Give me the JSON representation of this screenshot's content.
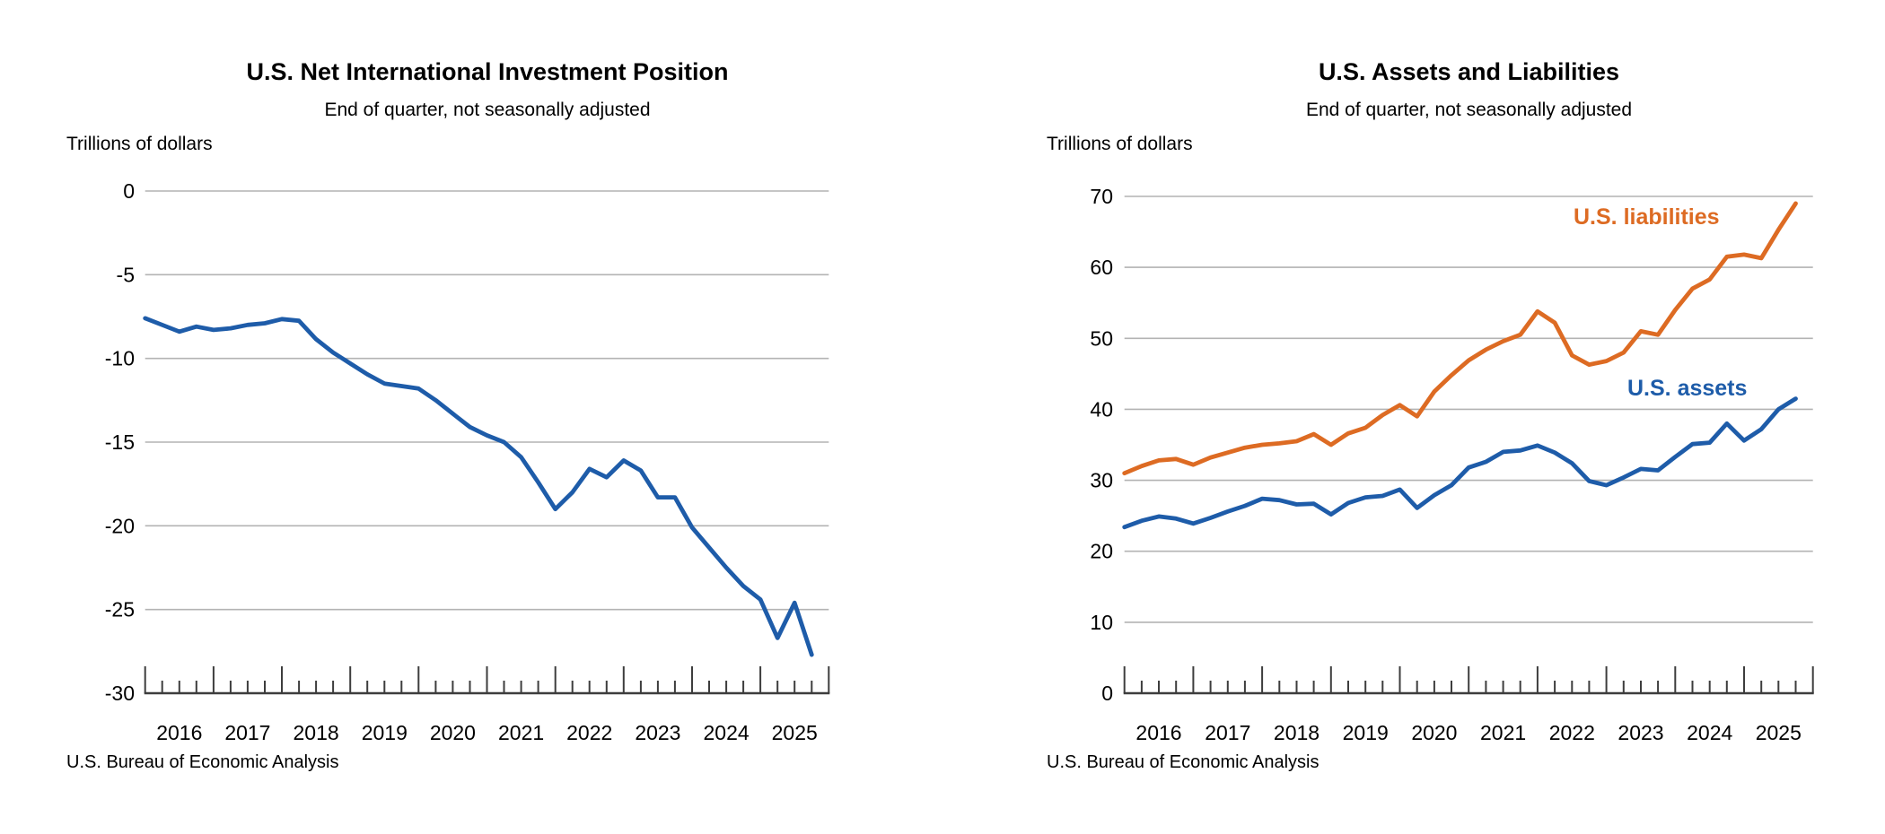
{
  "page": {
    "background": "#ffffff"
  },
  "chart_data": [
    {
      "type": "line",
      "title": "U.S. Net International Investment Position",
      "subtitle": "End of quarter, not seasonally adjusted",
      "units_label": "Trillions of dollars",
      "source": "U.S. Bureau of Economic Analysis",
      "grid": "horizontal",
      "legend_position": "none",
      "ylim": [
        -30,
        0
      ],
      "yticks": [
        0,
        -5,
        -10,
        -15,
        -20,
        -25,
        -30
      ],
      "x_tick_years": [
        "2016",
        "2017",
        "2018",
        "2019",
        "2020",
        "2021",
        "2022",
        "2023",
        "2024",
        "2025"
      ],
      "x_quarters": [
        "2015 Q4",
        "2016 Q1",
        "2016 Q2",
        "2016 Q3",
        "2016 Q4",
        "2017 Q1",
        "2017 Q2",
        "2017 Q3",
        "2017 Q4",
        "2018 Q1",
        "2018 Q2",
        "2018 Q3",
        "2018 Q4",
        "2019 Q1",
        "2019 Q2",
        "2019 Q3",
        "2019 Q4",
        "2020 Q1",
        "2020 Q2",
        "2020 Q3",
        "2020 Q4",
        "2021 Q1",
        "2021 Q2",
        "2021 Q3",
        "2021 Q4",
        "2022 Q1",
        "2022 Q2",
        "2022 Q3",
        "2022 Q4",
        "2023 Q1",
        "2023 Q2",
        "2023 Q3",
        "2023 Q4",
        "2024 Q1",
        "2024 Q2",
        "2024 Q3",
        "2024 Q4",
        "2025 Q1",
        "2025 Q2",
        "2025 Q3"
      ],
      "series": [
        {
          "name": "U.S. net international investment position",
          "label": "",
          "color": "#1e5ca9",
          "values": [
            -7.6,
            -8.0,
            -8.4,
            -8.1,
            -8.3,
            -8.2,
            -8.0,
            -7.9,
            -7.65,
            -7.75,
            -8.85,
            -9.65,
            -10.3,
            -10.95,
            -11.5,
            -11.65,
            -11.8,
            -12.5,
            -13.3,
            -14.1,
            -14.6,
            -15.0,
            -15.9,
            -17.4,
            -19.0,
            -18.0,
            -16.6,
            -17.1,
            -16.1,
            -16.7,
            -18.3,
            -18.3,
            -20.1,
            -21.3,
            -22.5,
            -23.6,
            -24.4,
            -26.7,
            -24.6,
            -27.7
          ]
        }
      ]
    },
    {
      "type": "line",
      "title": "U.S. Assets and Liabilities",
      "subtitle": "End of quarter, not seasonally adjusted",
      "units_label": "Trillions of dollars",
      "source": "U.S. Bureau of Economic Analysis",
      "grid": "horizontal",
      "legend_position": "inline-labels",
      "ylim": [
        0,
        70
      ],
      "yticks": [
        70,
        60,
        50,
        40,
        30,
        20,
        10,
        0
      ],
      "x_tick_years": [
        "2016",
        "2017",
        "2018",
        "2019",
        "2020",
        "2021",
        "2022",
        "2023",
        "2024",
        "2025"
      ],
      "x_quarters": [
        "2015 Q4",
        "2016 Q1",
        "2016 Q2",
        "2016 Q3",
        "2016 Q4",
        "2017 Q1",
        "2017 Q2",
        "2017 Q3",
        "2017 Q4",
        "2018 Q1",
        "2018 Q2",
        "2018 Q3",
        "2018 Q4",
        "2019 Q1",
        "2019 Q2",
        "2019 Q3",
        "2019 Q4",
        "2020 Q1",
        "2020 Q2",
        "2020 Q3",
        "2020 Q4",
        "2021 Q1",
        "2021 Q2",
        "2021 Q3",
        "2021 Q4",
        "2022 Q1",
        "2022 Q2",
        "2022 Q3",
        "2022 Q4",
        "2023 Q1",
        "2023 Q2",
        "2023 Q3",
        "2023 Q4",
        "2024 Q1",
        "2024 Q2",
        "2024 Q3",
        "2024 Q4",
        "2025 Q1",
        "2025 Q2",
        "2025 Q3"
      ],
      "series": [
        {
          "name": "U.S. liabilities",
          "label": "U.S. liabilities",
          "color": "#dd6b23",
          "values": [
            31.0,
            32.0,
            32.8,
            33.0,
            32.2,
            33.2,
            33.9,
            34.6,
            35.0,
            35.2,
            35.5,
            36.5,
            35.0,
            36.6,
            37.4,
            39.2,
            40.6,
            39.0,
            42.5,
            44.8,
            46.9,
            48.4,
            49.6,
            50.5,
            53.8,
            52.2,
            47.6,
            46.3,
            46.8,
            48.0,
            51.0,
            50.5,
            54.0,
            57.0,
            58.3,
            61.5,
            61.8,
            61.3,
            65.3,
            69.0
          ]
        },
        {
          "name": "U.S. assets",
          "label": "U.S. assets",
          "color": "#1e5ca9",
          "values": [
            23.4,
            24.3,
            24.9,
            24.6,
            23.9,
            24.7,
            25.6,
            26.4,
            27.4,
            27.2,
            26.6,
            26.7,
            25.2,
            26.8,
            27.6,
            27.8,
            28.7,
            26.1,
            27.9,
            29.3,
            31.8,
            32.6,
            34.0,
            34.2,
            34.9,
            33.9,
            32.4,
            29.9,
            29.3,
            30.4,
            31.6,
            31.4,
            33.3,
            35.1,
            35.3,
            38.0,
            35.6,
            37.2,
            40.0,
            41.5
          ]
        }
      ]
    }
  ]
}
